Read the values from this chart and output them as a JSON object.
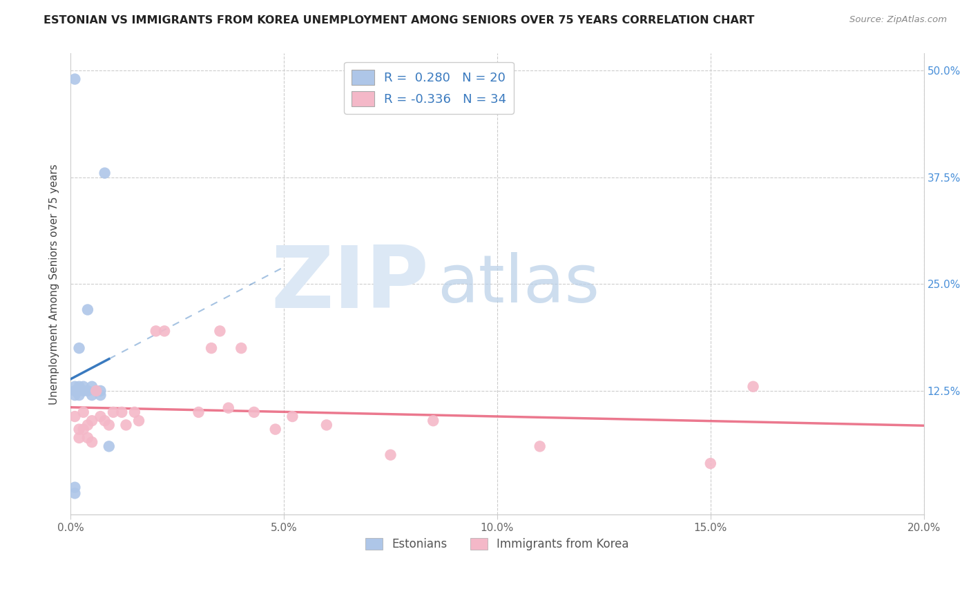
{
  "title": "ESTONIAN VS IMMIGRANTS FROM KOREA UNEMPLOYMENT AMONG SENIORS OVER 75 YEARS CORRELATION CHART",
  "source": "Source: ZipAtlas.com",
  "ylabel": "Unemployment Among Seniors over 75 years",
  "xlim": [
    0.0,
    0.2
  ],
  "ylim": [
    -0.02,
    0.52
  ],
  "xticks": [
    0.0,
    0.05,
    0.1,
    0.15,
    0.2
  ],
  "xtick_labels": [
    "0.0%",
    "5.0%",
    "10.0%",
    "15.0%",
    "20.0%"
  ],
  "yticks": [
    0.0,
    0.125,
    0.25,
    0.375,
    0.5
  ],
  "ytick_labels": [
    "",
    "12.5%",
    "25.0%",
    "37.5%",
    "50.0%"
  ],
  "blue_R": 0.28,
  "blue_N": 20,
  "pink_R": -0.336,
  "pink_N": 34,
  "blue_color": "#aec6e8",
  "blue_line_color": "#3a7abf",
  "pink_color": "#f4b8c8",
  "pink_line_color": "#e8607a",
  "legend_label_blue": "Estonians",
  "legend_label_pink": "Immigrants from Korea",
  "blue_scatter_x": [
    0.001,
    0.001,
    0.001,
    0.001,
    0.002,
    0.002,
    0.002,
    0.003,
    0.003,
    0.004,
    0.004,
    0.005,
    0.005,
    0.006,
    0.007,
    0.007,
    0.008,
    0.009,
    0.001,
    0.001
  ],
  "blue_scatter_y": [
    0.49,
    0.13,
    0.125,
    0.12,
    0.175,
    0.13,
    0.12,
    0.13,
    0.125,
    0.22,
    0.125,
    0.13,
    0.12,
    0.125,
    0.12,
    0.125,
    0.38,
    0.06,
    0.012,
    0.005
  ],
  "pink_scatter_x": [
    0.001,
    0.002,
    0.002,
    0.003,
    0.003,
    0.004,
    0.004,
    0.005,
    0.005,
    0.006,
    0.007,
    0.008,
    0.009,
    0.01,
    0.012,
    0.013,
    0.015,
    0.016,
    0.02,
    0.022,
    0.03,
    0.033,
    0.035,
    0.037,
    0.04,
    0.043,
    0.048,
    0.052,
    0.06,
    0.075,
    0.085,
    0.11,
    0.15,
    0.16
  ],
  "pink_scatter_y": [
    0.095,
    0.08,
    0.07,
    0.1,
    0.08,
    0.085,
    0.07,
    0.09,
    0.065,
    0.125,
    0.095,
    0.09,
    0.085,
    0.1,
    0.1,
    0.085,
    0.1,
    0.09,
    0.195,
    0.195,
    0.1,
    0.175,
    0.195,
    0.105,
    0.175,
    0.1,
    0.08,
    0.095,
    0.085,
    0.05,
    0.09,
    0.06,
    0.04,
    0.13
  ]
}
